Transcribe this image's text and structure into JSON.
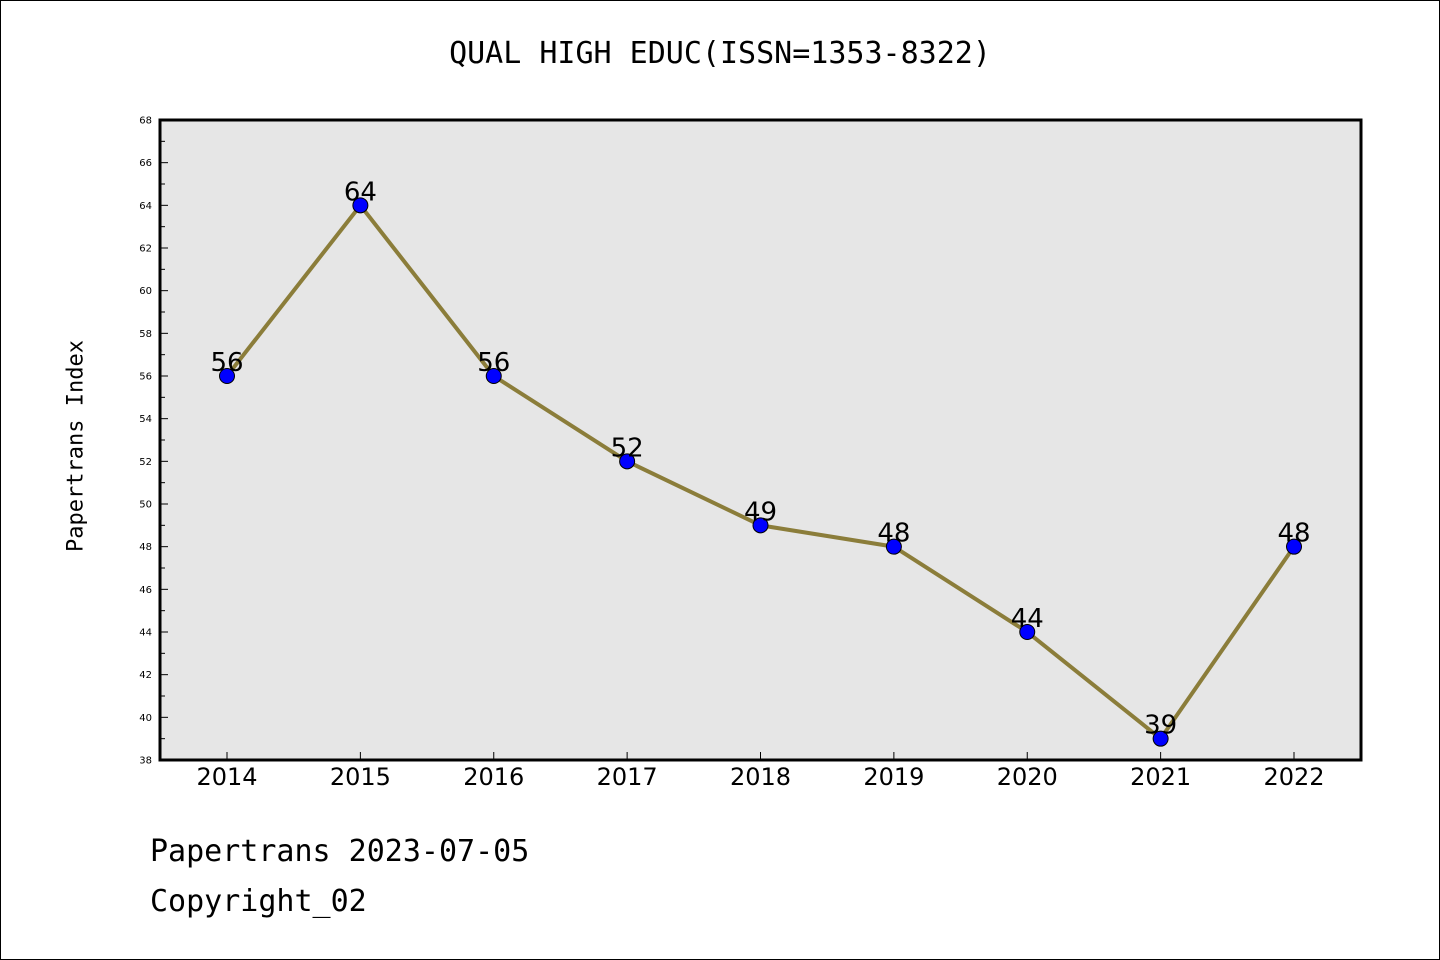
{
  "title": "QUAL HIGH EDUC(ISSN=1353-8322)",
  "footer": {
    "line1": "Papertrans 2023-07-05",
    "line2": "Copyright_02"
  },
  "colors": {
    "plot_background": "#e6e6e6",
    "line": "#8b7d3a",
    "marker": "#0000ff"
  },
  "chart_data": {
    "type": "line",
    "title": "QUAL HIGH EDUC(ISSN=1353-8322)",
    "xlabel": "",
    "ylabel": "Papertrans Index",
    "categories": [
      "2014",
      "2015",
      "2016",
      "2017",
      "2018",
      "2019",
      "2020",
      "2021",
      "2022"
    ],
    "values": [
      56,
      64,
      56,
      52,
      49,
      48,
      44,
      39,
      48
    ],
    "data_labels": [
      "56",
      "64",
      "56",
      "52",
      "49",
      "48",
      "44",
      "39",
      "48"
    ],
    "ylim": [
      38,
      68
    ],
    "yticks": [
      "38",
      "40",
      "42",
      "44",
      "46",
      "48",
      "50",
      "52",
      "54",
      "56",
      "58",
      "60",
      "62",
      "64",
      "66",
      "68"
    ],
    "grid": false,
    "legend": "none"
  }
}
